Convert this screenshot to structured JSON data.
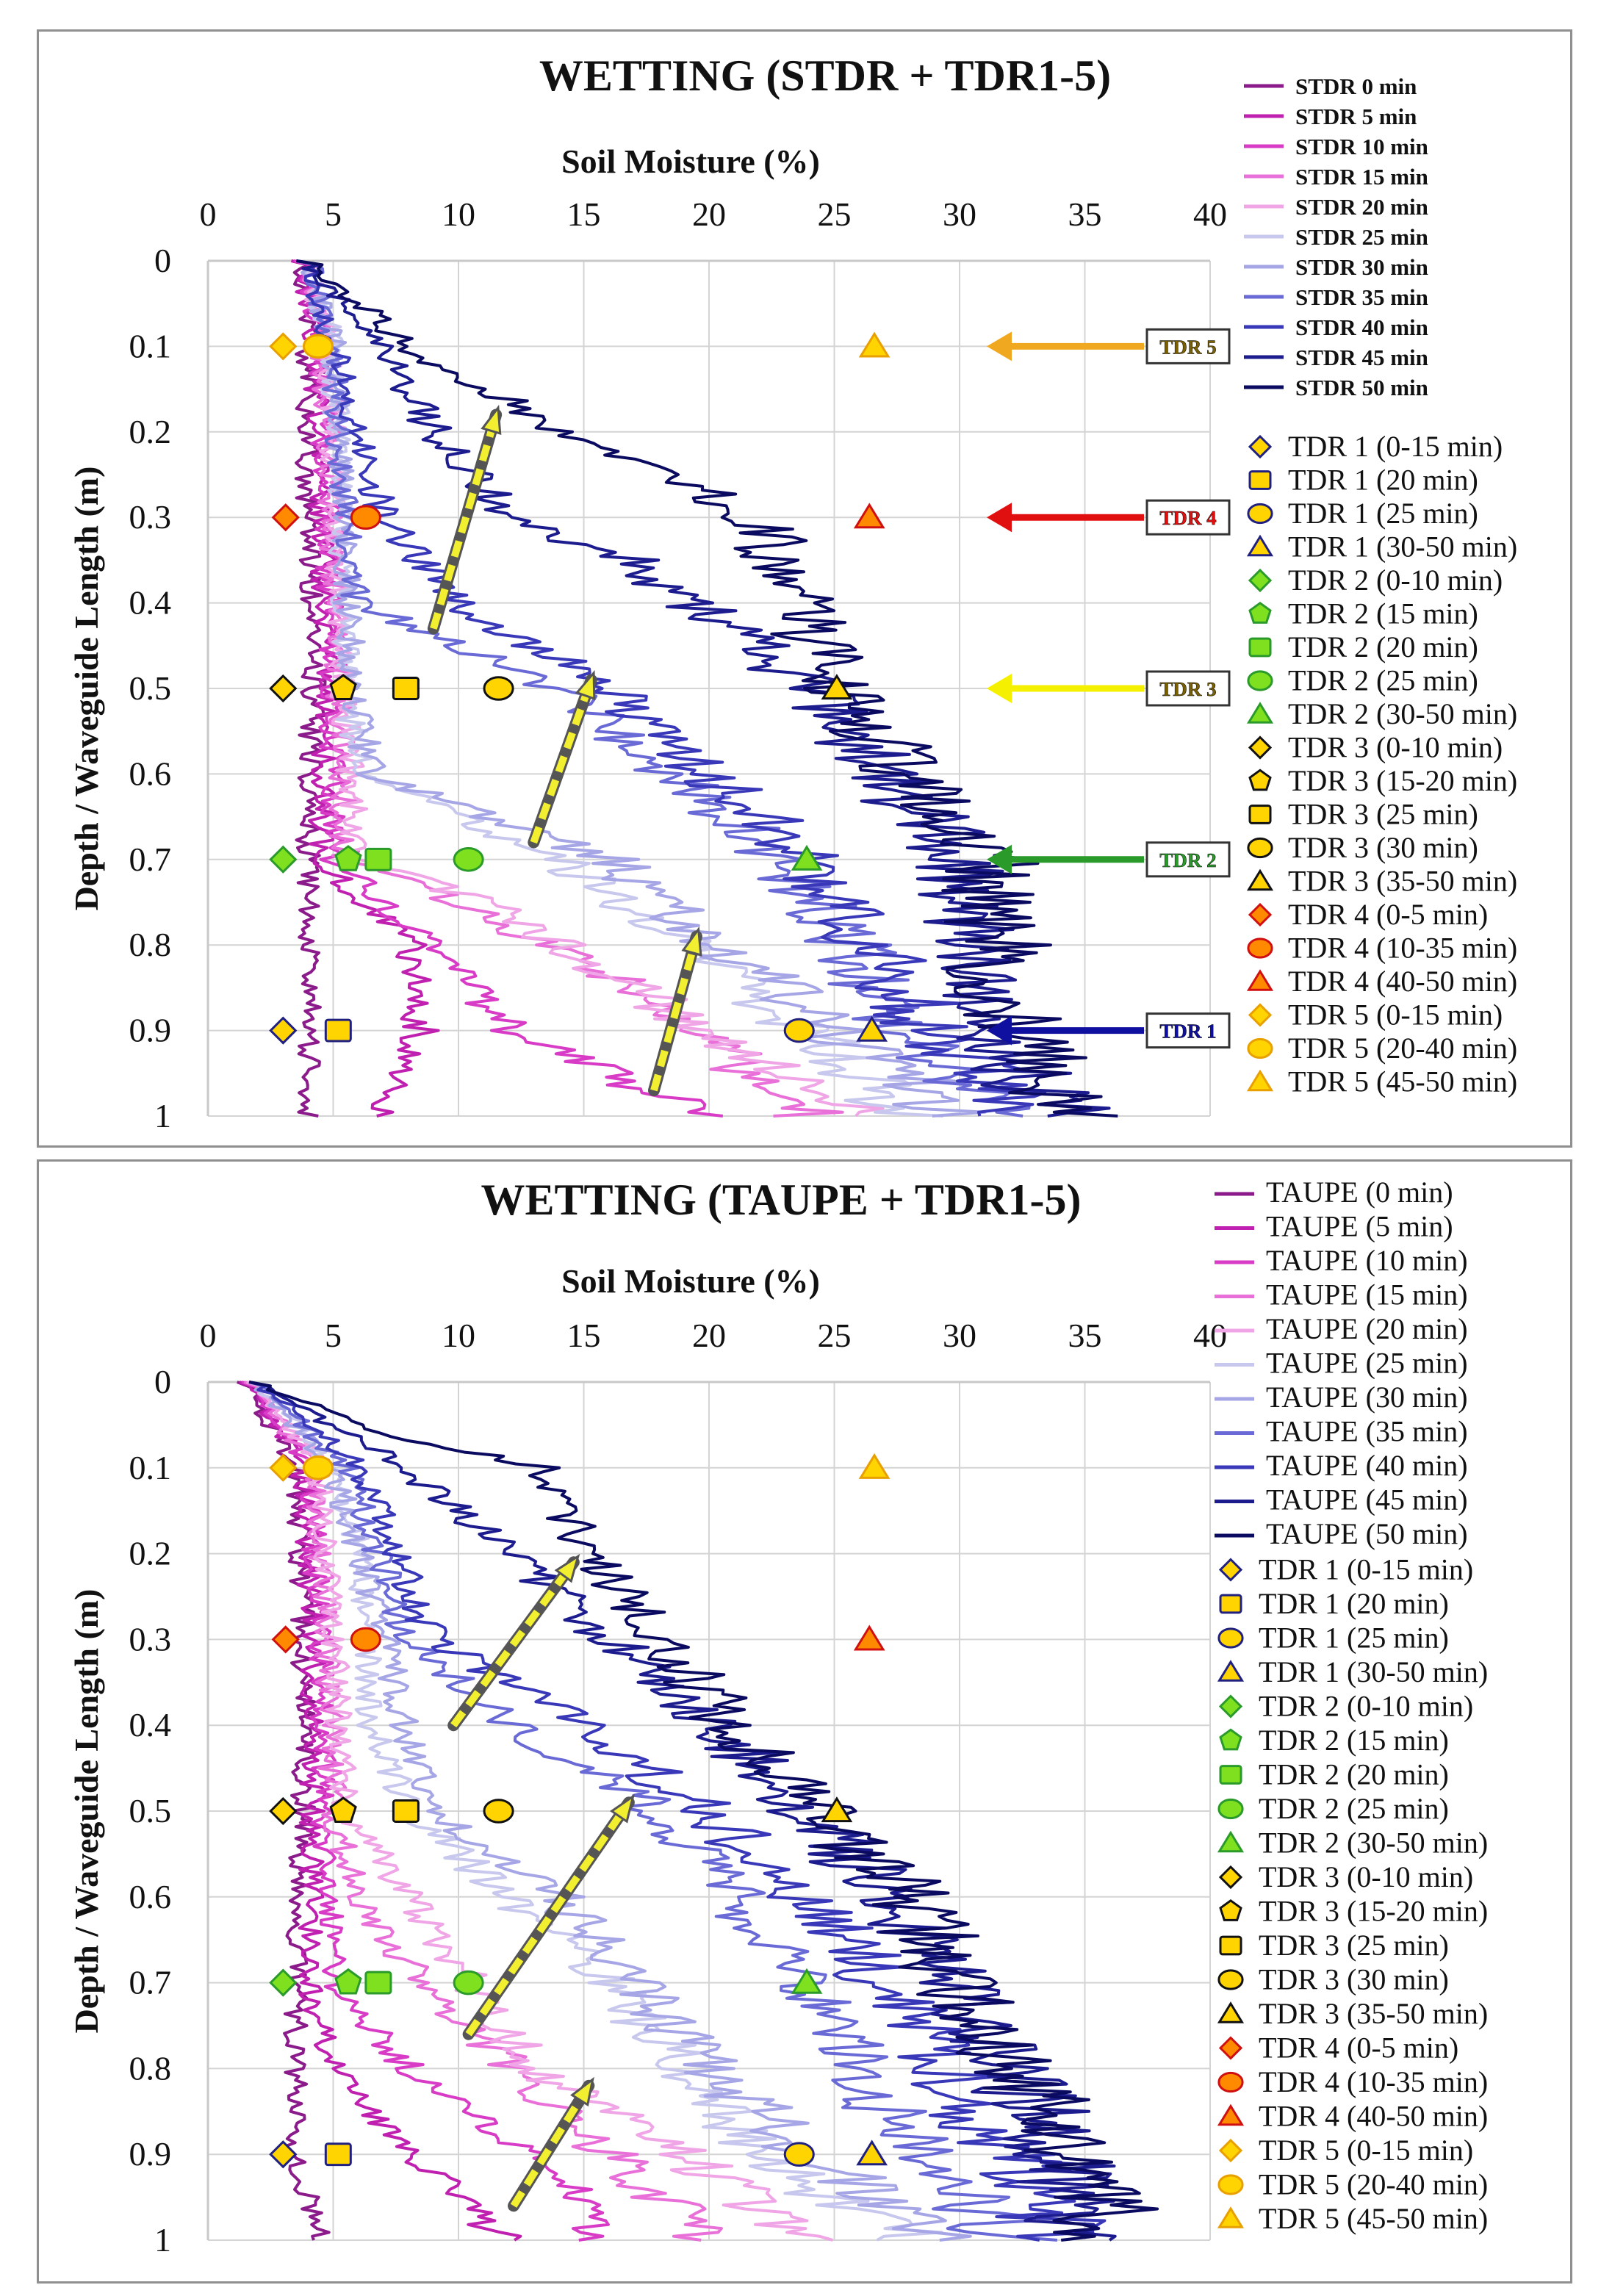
{
  "chart_data": [
    {
      "type": "line",
      "title": "WETTING (STDR + TDR1-5)",
      "xlabel": "Soil Moisture (%)",
      "ylabel": "Depth / Waveguide Length (m)",
      "xlim": [
        0,
        40
      ],
      "ylim": [
        0,
        1
      ],
      "x_ticks": [
        "0",
        "5",
        "10",
        "15",
        "20",
        "25",
        "30",
        "35",
        "40"
      ],
      "y_ticks": [
        "0",
        "0.1",
        "0.2",
        "0.3",
        "0.4",
        "0.5",
        "0.6",
        "0.7",
        "0.8",
        "0.9",
        "1"
      ],
      "grid": true,
      "legend_position": "right",
      "series": [
        {
          "name": "STDR  0 min",
          "color": "#8b1a8b",
          "depth": [
            0,
            0.1,
            0.3,
            0.5,
            0.7,
            0.9,
            1.0
          ],
          "values": [
            3.8,
            4.0,
            4.0,
            4.2,
            4.0,
            4.0,
            4.0
          ]
        },
        {
          "name": "STDR  5 min",
          "color": "#c020b0",
          "depth": [
            0,
            0.1,
            0.3,
            0.5,
            0.7,
            0.8,
            0.9,
            1.0
          ],
          "values": [
            3.8,
            4.3,
            4.5,
            4.8,
            4.5,
            8.0,
            8.5,
            7.0
          ]
        },
        {
          "name": "STDR 10 min",
          "color": "#d83cc6",
          "depth": [
            0,
            0.1,
            0.3,
            0.5,
            0.7,
            0.8,
            0.9,
            1.0
          ],
          "values": [
            3.9,
            4.5,
            4.8,
            5.0,
            5.0,
            9.0,
            12.0,
            20.0
          ]
        },
        {
          "name": "STDR 15 min",
          "color": "#e870d8",
          "depth": [
            0,
            0.1,
            0.3,
            0.5,
            0.7,
            0.75,
            0.85,
            1.0
          ],
          "values": [
            4.0,
            4.6,
            5.0,
            5.2,
            5.5,
            10.0,
            17.0,
            24.0
          ]
        },
        {
          "name": "STDR 20 min",
          "color": "#f0a6e6",
          "depth": [
            0,
            0.1,
            0.3,
            0.5,
            0.7,
            0.75,
            0.9,
            1.0
          ],
          "values": [
            4.0,
            4.8,
            5.2,
            5.4,
            6.0,
            11.0,
            20.0,
            26.0
          ]
        },
        {
          "name": "STDR 25 min",
          "color": "#c8c8ee",
          "depth": [
            0,
            0.1,
            0.3,
            0.5,
            0.6,
            0.7,
            0.9,
            1.0
          ],
          "values": [
            4.0,
            5.0,
            5.3,
            5.6,
            6.0,
            14.0,
            24.0,
            28.0
          ]
        },
        {
          "name": "STDR 30 min",
          "color": "#a6a6e6",
          "depth": [
            0,
            0.1,
            0.3,
            0.5,
            0.6,
            0.7,
            0.9,
            1.0
          ],
          "values": [
            4.0,
            5.0,
            5.4,
            5.8,
            6.5,
            16.0,
            25.0,
            30.0
          ]
        },
        {
          "name": "STDR 35 min",
          "color": "#6a6ad6",
          "depth": [
            0,
            0.1,
            0.3,
            0.4,
            0.5,
            0.7,
            0.9,
            1.0
          ],
          "values": [
            4.0,
            5.0,
            5.5,
            6.0,
            14.0,
            23.0,
            28.0,
            32.0
          ]
        },
        {
          "name": "STDR 40 min",
          "color": "#3838b8",
          "depth": [
            0,
            0.1,
            0.2,
            0.3,
            0.4,
            0.5,
            0.7,
            0.9,
            1.0
          ],
          "values": [
            4.0,
            5.0,
            6.0,
            7.0,
            10.0,
            16.0,
            24.0,
            29.0,
            33.0
          ]
        },
        {
          "name": "STDR 45 min",
          "color": "#1c1c8e",
          "depth": [
            0,
            0.1,
            0.2,
            0.3,
            0.35,
            0.5,
            0.7,
            0.9,
            1.0
          ],
          "values": [
            4.0,
            7.0,
            9.0,
            12.0,
            17.0,
            24.0,
            30.0,
            31.0,
            34.0
          ]
        },
        {
          "name": "STDR 50 min",
          "color": "#0a0a60",
          "depth": [
            0,
            0.1,
            0.15,
            0.2,
            0.3,
            0.5,
            0.7,
            0.9,
            1.0
          ],
          "values": [
            4.0,
            8.0,
            11.0,
            14.0,
            22.0,
            25.0,
            31.0,
            32.0,
            35.0
          ]
        }
      ],
      "tdr_markers": [
        {
          "name": "TDR 1 (0-15 min)",
          "depth": 0.9,
          "value": 3.0,
          "shape": "diamond",
          "fill": "#ffd400"
        },
        {
          "name": "TDR 1 (20 min)",
          "depth": 0.9,
          "value": 5.2,
          "shape": "square",
          "fill": "#ffd400"
        },
        {
          "name": "TDR 1 (25 min)",
          "depth": 0.9,
          "value": 23.6,
          "shape": "circle",
          "fill": "#ffd400"
        },
        {
          "name": "TDR 1 (30-50 min)",
          "depth": 0.9,
          "value": 26.5,
          "shape": "triangle",
          "fill": "#ffd400"
        },
        {
          "name": "TDR 2 (0-10 min)",
          "depth": 0.7,
          "value": 3.0,
          "shape": "diamond",
          "fill": "#7fe020"
        },
        {
          "name": "TDR 2 (15 min)",
          "depth": 0.7,
          "value": 5.6,
          "shape": "pentagon",
          "fill": "#7fe020"
        },
        {
          "name": "TDR 2 (20 min)",
          "depth": 0.7,
          "value": 6.8,
          "shape": "square",
          "fill": "#7fe020"
        },
        {
          "name": "TDR 2 (25 min)",
          "depth": 0.7,
          "value": 10.4,
          "shape": "circle",
          "fill": "#7fe020"
        },
        {
          "name": "TDR 2 (30-50 min)",
          "depth": 0.7,
          "value": 23.9,
          "shape": "triangle",
          "fill": "#7fe020"
        },
        {
          "name": "TDR 3 (0-10 min)",
          "depth": 0.5,
          "value": 3.0,
          "shape": "diamond",
          "fill": "#ffd400"
        },
        {
          "name": "TDR 3 (15-20 min)",
          "depth": 0.5,
          "value": 5.4,
          "shape": "pentagon",
          "fill": "#ffd400"
        },
        {
          "name": "TDR 3 (25 min)",
          "depth": 0.5,
          "value": 7.9,
          "shape": "square",
          "fill": "#ffd400"
        },
        {
          "name": "TDR 3 (30 min)",
          "depth": 0.5,
          "value": 11.6,
          "shape": "circle",
          "fill": "#ffd400"
        },
        {
          "name": "TDR 3 (35-50 min)",
          "depth": 0.5,
          "value": 25.1,
          "shape": "triangle",
          "fill": "#ffd400"
        },
        {
          "name": "TDR 4 (0-5 min)",
          "depth": 0.3,
          "value": 3.1,
          "shape": "diamond",
          "fill": "#ff8a00"
        },
        {
          "name": "TDR 4 (10-35 min)",
          "depth": 0.3,
          "value": 6.3,
          "shape": "circle",
          "fill": "#ff8a00"
        },
        {
          "name": "TDR 4 (40-50 min)",
          "depth": 0.3,
          "value": 26.4,
          "shape": "triangle",
          "fill": "#ff8a00"
        },
        {
          "name": "TDR 5 (0-15 min)",
          "depth": 0.1,
          "value": 3.0,
          "shape": "diamond",
          "fill": "#ffd400"
        },
        {
          "name": "TDR 5 (20-40 min)",
          "depth": 0.1,
          "value": 4.4,
          "shape": "circle",
          "fill": "#ffd400"
        },
        {
          "name": "TDR 5 (45-50 min)",
          "depth": 0.1,
          "value": 26.6,
          "shape": "triangle",
          "fill": "#ffd400"
        }
      ],
      "tdr_callouts": [
        {
          "label": "TDR 5",
          "depth": 0.1,
          "color": "#f0a820"
        },
        {
          "label": "TDR 4",
          "depth": 0.3,
          "color": "#e01010"
        },
        {
          "label": "TDR 3",
          "depth": 0.5,
          "color": "#f5f000"
        },
        {
          "label": "TDR 2",
          "depth": 0.7,
          "color": "#2a9a2a"
        },
        {
          "label": "TDR 1",
          "depth": 0.9,
          "color": "#1010a0"
        }
      ]
    },
    {
      "type": "line",
      "title": "WETTING (TAUPE + TDR1-5)",
      "xlabel": "Soil Moisture  (%)",
      "ylabel": "Depth / Waveguide Length (m)",
      "xlim": [
        0,
        40
      ],
      "ylim": [
        0,
        1
      ],
      "x_ticks": [
        "0",
        "5",
        "10",
        "15",
        "20",
        "25",
        "30",
        "35",
        "40"
      ],
      "y_ticks": [
        "0",
        "0.1",
        "0.2",
        "0.3",
        "0.4",
        "0.5",
        "0.6",
        "0.7",
        "0.8",
        "0.9",
        "1"
      ],
      "grid": true,
      "legend_position": "right",
      "series": [
        {
          "name": "TAUPE (0 min)",
          "color": "#8b1a8b",
          "depth": [
            0,
            0.1,
            0.3,
            0.5,
            0.7,
            0.9,
            1.0
          ],
          "values": [
            1.5,
            3.5,
            3.8,
            3.8,
            3.5,
            3.5,
            4.5
          ]
        },
        {
          "name": "TAUPE (5 min)",
          "color": "#c020b0",
          "depth": [
            0,
            0.1,
            0.3,
            0.5,
            0.7,
            0.8,
            0.9,
            1.0
          ],
          "values": [
            1.6,
            3.8,
            4.2,
            4.2,
            4.0,
            5.0,
            8.0,
            12.0
          ]
        },
        {
          "name": "TAUPE (10 min)",
          "depth": [
            0,
            0.1,
            0.3,
            0.5,
            0.7,
            0.8,
            0.9,
            1.0
          ],
          "color": "#d83cc6",
          "values": [
            1.7,
            4.0,
            4.5,
            4.6,
            5.0,
            8.0,
            13.0,
            16.0
          ]
        },
        {
          "name": "TAUPE (15 min)",
          "color": "#e870d8",
          "depth": [
            0,
            0.1,
            0.3,
            0.5,
            0.6,
            0.7,
            0.9,
            1.0
          ],
          "values": [
            1.8,
            4.2,
            4.8,
            5.0,
            6.0,
            8.5,
            16.0,
            20.0
          ]
        },
        {
          "name": "TAUPE (20 min)",
          "color": "#f0a6e6",
          "depth": [
            0,
            0.1,
            0.3,
            0.5,
            0.6,
            0.8,
            0.9,
            1.0
          ],
          "values": [
            1.9,
            4.5,
            5.0,
            5.5,
            8.0,
            13.0,
            19.0,
            24.0
          ]
        },
        {
          "name": "TAUPE (25 min)",
          "color": "#c8c8ee",
          "depth": [
            0,
            0.1,
            0.2,
            0.4,
            0.5,
            0.7,
            0.9,
            1.0
          ],
          "values": [
            2.0,
            5.0,
            6.0,
            6.5,
            8.0,
            16.0,
            22.0,
            28.0
          ]
        },
        {
          "name": "TAUPE (30 min)",
          "color": "#a6a6e6",
          "depth": [
            0,
            0.1,
            0.3,
            0.5,
            0.6,
            0.8,
            0.9,
            1.0
          ],
          "values": [
            2.0,
            5.0,
            7.0,
            9.0,
            14.0,
            20.0,
            24.0,
            29.0
          ]
        },
        {
          "name": "TAUPE (35 min)",
          "color": "#6a6ad6",
          "depth": [
            0,
            0.1,
            0.3,
            0.4,
            0.5,
            0.7,
            0.9,
            1.0
          ],
          "values": [
            2.0,
            5.5,
            8.0,
            12.0,
            18.0,
            24.0,
            28.0,
            32.0
          ]
        },
        {
          "name": "TAUPE (40 min)",
          "color": "#3838b8",
          "depth": [
            0,
            0.1,
            0.3,
            0.4,
            0.5,
            0.7,
            0.9,
            1.0
          ],
          "values": [
            2.0,
            6.0,
            9.0,
            15.0,
            20.0,
            27.0,
            32.0,
            34.0
          ]
        },
        {
          "name": "TAUPE (45 min)",
          "color": "#1c1c8e",
          "depth": [
            0,
            0.1,
            0.2,
            0.3,
            0.5,
            0.7,
            0.9,
            1.0
          ],
          "values": [
            2.0,
            8.0,
            12.0,
            16.0,
            24.0,
            30.0,
            34.0,
            35.0
          ]
        },
        {
          "name": "TAUPE (50 min)",
          "color": "#0a0a60",
          "depth": [
            0,
            0.05,
            0.1,
            0.2,
            0.4,
            0.6,
            0.8,
            0.9,
            1.0
          ],
          "values": [
            2.0,
            6.0,
            13.0,
            15.0,
            21.0,
            28.0,
            32.0,
            35.0,
            36.0
          ]
        }
      ],
      "tdr_markers": [
        {
          "name": "TDR 1 (0-15 min)",
          "depth": 0.9,
          "value": 3.0,
          "shape": "diamond",
          "fill": "#ffd400"
        },
        {
          "name": "TDR 1 (20 min)",
          "depth": 0.9,
          "value": 5.2,
          "shape": "square",
          "fill": "#ffd400"
        },
        {
          "name": "TDR 1 (25 min)",
          "depth": 0.9,
          "value": 23.6,
          "shape": "circle",
          "fill": "#ffd400"
        },
        {
          "name": "TDR 1 (30-50 min)",
          "depth": 0.9,
          "value": 26.5,
          "shape": "triangle",
          "fill": "#ffd400"
        },
        {
          "name": "TDR 2 (0-10 min)",
          "depth": 0.7,
          "value": 3.0,
          "shape": "diamond",
          "fill": "#7fe020"
        },
        {
          "name": "TDR 2 (15 min)",
          "depth": 0.7,
          "value": 5.6,
          "shape": "pentagon",
          "fill": "#7fe020"
        },
        {
          "name": "TDR 2 (20 min)",
          "depth": 0.7,
          "value": 6.8,
          "shape": "square",
          "fill": "#7fe020"
        },
        {
          "name": "TDR 2 (25 min)",
          "depth": 0.7,
          "value": 10.4,
          "shape": "circle",
          "fill": "#7fe020"
        },
        {
          "name": "TDR 2 (30-50 min)",
          "depth": 0.7,
          "value": 23.9,
          "shape": "triangle",
          "fill": "#7fe020"
        },
        {
          "name": "TDR 3 (0-10 min)",
          "depth": 0.5,
          "value": 3.0,
          "shape": "diamond",
          "fill": "#ffd400"
        },
        {
          "name": "TDR 3 (15-20 min)",
          "depth": 0.5,
          "value": 5.4,
          "shape": "pentagon",
          "fill": "#ffd400"
        },
        {
          "name": "TDR 3 (25 min)",
          "depth": 0.5,
          "value": 7.9,
          "shape": "square",
          "fill": "#ffd400"
        },
        {
          "name": "TDR 3 (30 min)",
          "depth": 0.5,
          "value": 11.6,
          "shape": "circle",
          "fill": "#ffd400"
        },
        {
          "name": "TDR 3 (35-50 min)",
          "depth": 0.5,
          "value": 25.1,
          "shape": "triangle",
          "fill": "#ffd400"
        },
        {
          "name": "TDR 4 (0-5 min)",
          "depth": 0.3,
          "value": 3.1,
          "shape": "diamond",
          "fill": "#ff8a00"
        },
        {
          "name": "TDR 4 (10-35 min)",
          "depth": 0.3,
          "value": 6.3,
          "shape": "circle",
          "fill": "#ff8a00"
        },
        {
          "name": "TDR 4 (40-50 min)",
          "depth": 0.3,
          "value": 26.4,
          "shape": "triangle",
          "fill": "#ff8a00"
        },
        {
          "name": "TDR 5 (0-15 min)",
          "depth": 0.1,
          "value": 3.0,
          "shape": "diamond",
          "fill": "#ffd400"
        },
        {
          "name": "TDR 5 (20-40 min)",
          "depth": 0.1,
          "value": 4.4,
          "shape": "circle",
          "fill": "#ffd400"
        },
        {
          "name": "TDR 5 (45-50 min)",
          "depth": 0.1,
          "value": 26.6,
          "shape": "triangle",
          "fill": "#ffd400"
        }
      ],
      "tdr_callouts": []
    }
  ]
}
